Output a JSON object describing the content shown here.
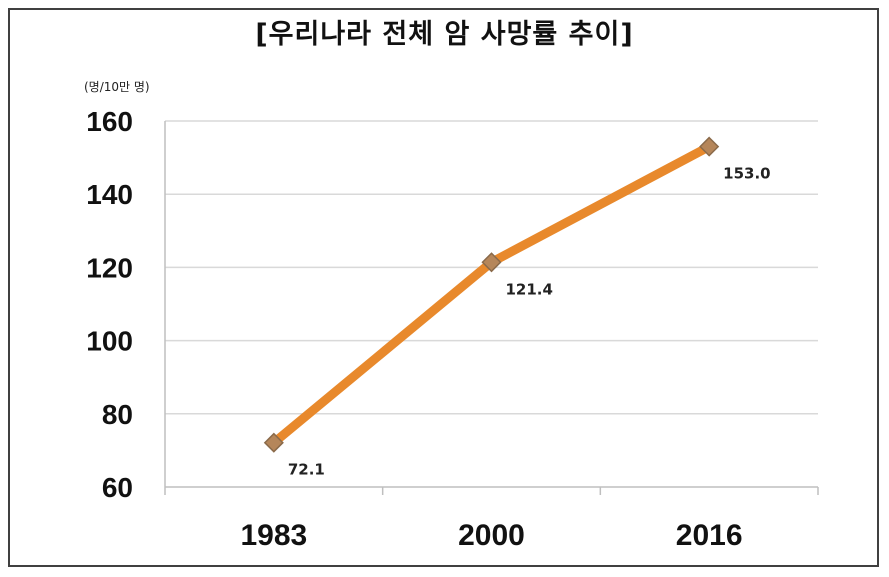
{
  "chart_data": {
    "type": "line",
    "title": "[우리나라 전체 암 사망률 추이]",
    "unit_label": "(명/10만 명)",
    "categories": [
      "1983",
      "2000",
      "2016"
    ],
    "series": [
      {
        "values": [
          72.1,
          121.4,
          153.0
        ],
        "labels": [
          "72.1",
          "121.4",
          "153.0"
        ]
      }
    ],
    "ylim": [
      60,
      160
    ],
    "yticks": [
      60,
      80,
      100,
      120,
      140,
      160
    ],
    "grid": true,
    "colors": {
      "line": "#e8892c",
      "marker": "#b5865a",
      "marker_edge": "#8a6a4a",
      "grid": "#d9d9d9",
      "axis": "#bfbfbf"
    }
  }
}
